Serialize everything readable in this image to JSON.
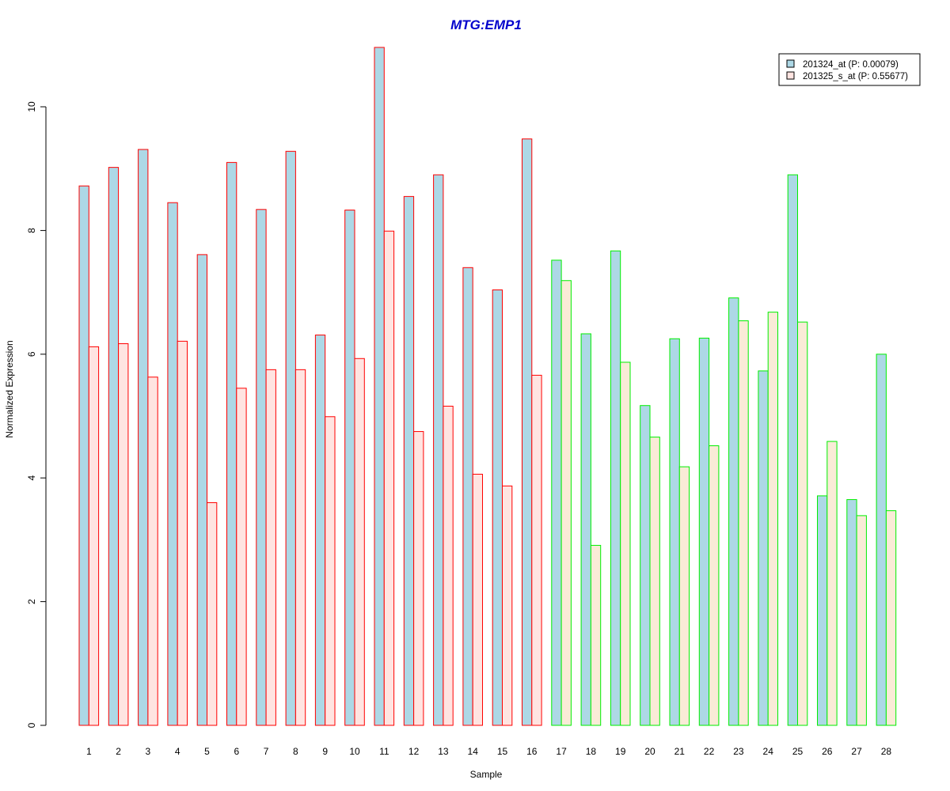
{
  "chart_data": {
    "type": "bar",
    "title": "MTG:EMP1",
    "xlabel": "Sample",
    "ylabel": "Normalized Expression",
    "categories": [
      "1",
      "2",
      "3",
      "4",
      "5",
      "6",
      "7",
      "8",
      "9",
      "10",
      "11",
      "12",
      "13",
      "14",
      "15",
      "16",
      "17",
      "18",
      "19",
      "20",
      "21",
      "22",
      "23",
      "24",
      "25",
      "26",
      "27",
      "28"
    ],
    "ylim": [
      0,
      11
    ],
    "yticks": [
      "0",
      "2",
      "4",
      "6",
      "8",
      "10"
    ],
    "series": [
      {
        "name": "201324_at (P: 0.00079)",
        "fill": "#add8e6",
        "values": [
          8.72,
          9.02,
          9.31,
          8.45,
          7.61,
          9.1,
          8.34,
          9.28,
          6.31,
          8.33,
          10.96,
          8.55,
          8.9,
          7.4,
          7.04,
          9.48,
          7.52,
          6.33,
          7.67,
          5.17,
          6.25,
          6.26,
          6.91,
          5.73,
          8.9,
          3.71,
          3.65,
          6.0
        ]
      },
      {
        "name": "201325_s_at (P: 0.55677)",
        "fill": "#ffe4e1",
        "fill_group2": "#faebd7",
        "values": [
          6.12,
          6.17,
          5.63,
          6.21,
          3.6,
          5.45,
          5.75,
          5.75,
          4.99,
          5.93,
          7.99,
          4.75,
          5.16,
          4.06,
          3.87,
          5.66,
          7.19,
          2.91,
          5.87,
          4.66,
          4.18,
          4.52,
          6.54,
          6.68,
          6.52,
          4.59,
          3.39,
          3.47
        ]
      }
    ],
    "group_border_colors": [
      "#ff0000",
      "#ff0000",
      "#ff0000",
      "#ff0000",
      "#ff0000",
      "#ff0000",
      "#ff0000",
      "#ff0000",
      "#ff0000",
      "#ff0000",
      "#ff0000",
      "#ff0000",
      "#ff0000",
      "#ff0000",
      "#ff0000",
      "#ff0000",
      "#00ee00",
      "#00ee00",
      "#00ee00",
      "#00ee00",
      "#00ee00",
      "#00ee00",
      "#00ee00",
      "#00ee00",
      "#00ee00",
      "#00ee00",
      "#00ee00",
      "#00ee00"
    ],
    "legend_position": "top-right",
    "grid": false
  }
}
